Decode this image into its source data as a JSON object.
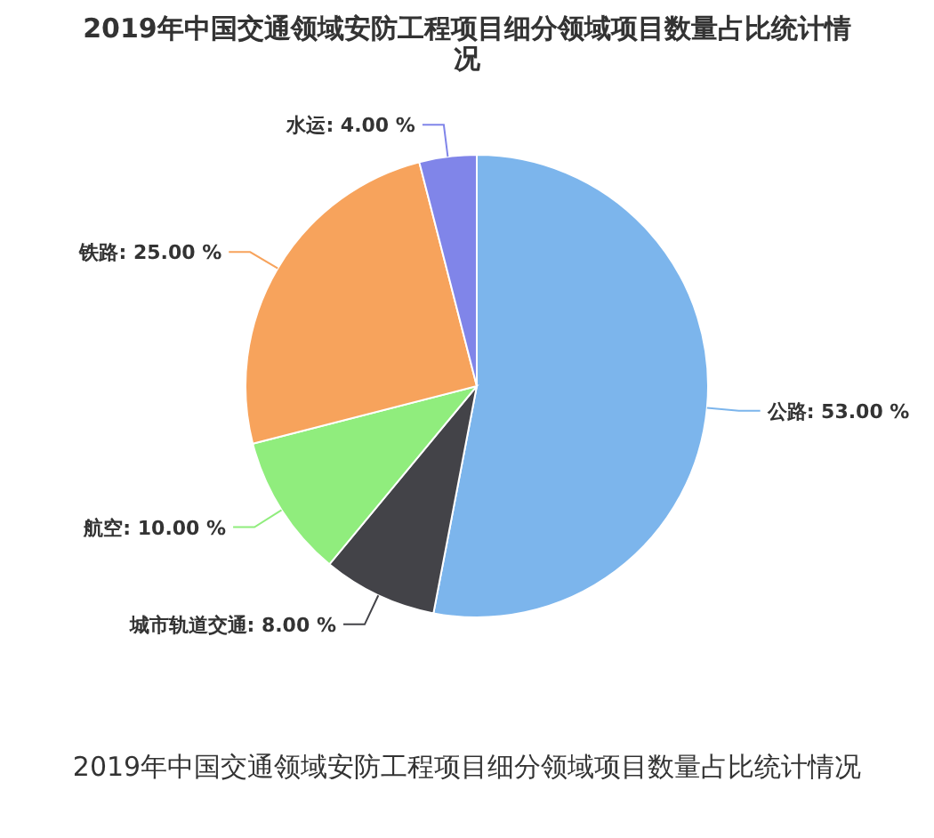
{
  "chart_data": {
    "type": "pie",
    "title": "2019年中国交通领域安防工程项目细分领域项目数量占比统计情况",
    "categories": [
      "公路",
      "城市轨道交通",
      "航空",
      "铁路",
      "水运"
    ],
    "values": [
      53,
      8,
      10,
      25,
      4
    ],
    "value_labels": [
      "53.00 %",
      "8.00 %",
      "10.00 %",
      "25.00 %",
      "4.00 %"
    ],
    "colors": [
      "#7cb5ec",
      "#434348",
      "#90ed7d",
      "#f7a35c",
      "#8085e9"
    ],
    "annotations": [
      "2019年中国交通领域安防工程项目细分领域项目数量占比统计情况"
    ]
  }
}
